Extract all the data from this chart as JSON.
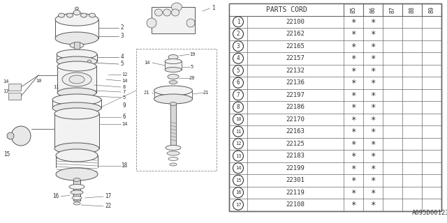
{
  "doc_number": "A095D00123",
  "table_header": "PARTS CORD",
  "year_cols": [
    "85",
    "86",
    "87",
    "88",
    "89"
  ],
  "parts": [
    {
      "num": "1",
      "code": "22100",
      "cols": [
        true,
        true,
        false,
        false,
        false
      ]
    },
    {
      "num": "2",
      "code": "22162",
      "cols": [
        true,
        true,
        false,
        false,
        false
      ]
    },
    {
      "num": "3",
      "code": "22165",
      "cols": [
        true,
        true,
        false,
        false,
        false
      ]
    },
    {
      "num": "4",
      "code": "22157",
      "cols": [
        true,
        true,
        false,
        false,
        false
      ]
    },
    {
      "num": "5",
      "code": "22132",
      "cols": [
        true,
        true,
        false,
        false,
        false
      ]
    },
    {
      "num": "6",
      "code": "22136",
      "cols": [
        true,
        true,
        false,
        false,
        false
      ]
    },
    {
      "num": "7",
      "code": "22197",
      "cols": [
        true,
        true,
        false,
        false,
        false
      ]
    },
    {
      "num": "8",
      "code": "22186",
      "cols": [
        true,
        true,
        false,
        false,
        false
      ]
    },
    {
      "num": "10",
      "code": "22170",
      "cols": [
        true,
        true,
        false,
        false,
        false
      ]
    },
    {
      "num": "11",
      "code": "22163",
      "cols": [
        true,
        true,
        false,
        false,
        false
      ]
    },
    {
      "num": "12",
      "code": "22125",
      "cols": [
        true,
        true,
        false,
        false,
        false
      ]
    },
    {
      "num": "13",
      "code": "22183",
      "cols": [
        true,
        true,
        false,
        false,
        false
      ]
    },
    {
      "num": "14",
      "code": "22199",
      "cols": [
        true,
        true,
        false,
        false,
        false
      ]
    },
    {
      "num": "15",
      "code": "22301",
      "cols": [
        true,
        true,
        false,
        false,
        false
      ]
    },
    {
      "num": "16",
      "code": "22119",
      "cols": [
        true,
        true,
        false,
        false,
        false
      ]
    },
    {
      "num": "17",
      "code": "22108",
      "cols": [
        true,
        true,
        false,
        false,
        false
      ]
    }
  ],
  "bg_color": "#ffffff",
  "line_color": "#666666",
  "text_color": "#333333"
}
